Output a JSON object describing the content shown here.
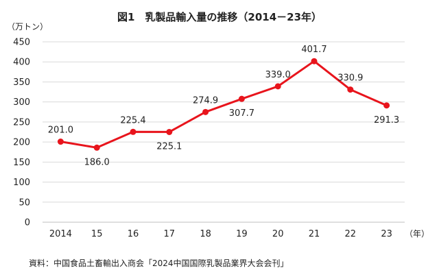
{
  "chart_data": {
    "type": "line",
    "title": "図1　乳製品輸入量の推移（2014－23年）",
    "y_unit_label": "（万トン）",
    "x_unit_label": "（年）",
    "x": [
      "2014",
      "15",
      "16",
      "17",
      "18",
      "19",
      "20",
      "21",
      "22",
      "23"
    ],
    "series": [
      {
        "values": [
          201.0,
          186.0,
          225.4,
          225.1,
          274.9,
          307.7,
          339.0,
          401.7,
          330.9,
          291.3
        ],
        "data_labels": [
          "201.0",
          "186.0",
          "225.4",
          "225.1",
          "274.9",
          "307.7",
          "339.0",
          "401.7",
          "330.9",
          "291.3"
        ],
        "label_positions": [
          "above",
          "below",
          "above",
          "below",
          "above",
          "below",
          "above",
          "above",
          "above",
          "below"
        ],
        "color": "#e8141c"
      }
    ],
    "y_ticks": [
      "0",
      "50",
      "100",
      "150",
      "200",
      "250",
      "300",
      "350",
      "400",
      "450"
    ],
    "ylim": [
      0,
      450
    ],
    "grid": true,
    "legend": "none",
    "source": "資料：中国食品土畜輸出入商会「2024中国国際乳製品業界大会会刊」"
  },
  "colors": {
    "line": "#e8141c",
    "grid": "#d9d9d9",
    "text": "#222222"
  }
}
